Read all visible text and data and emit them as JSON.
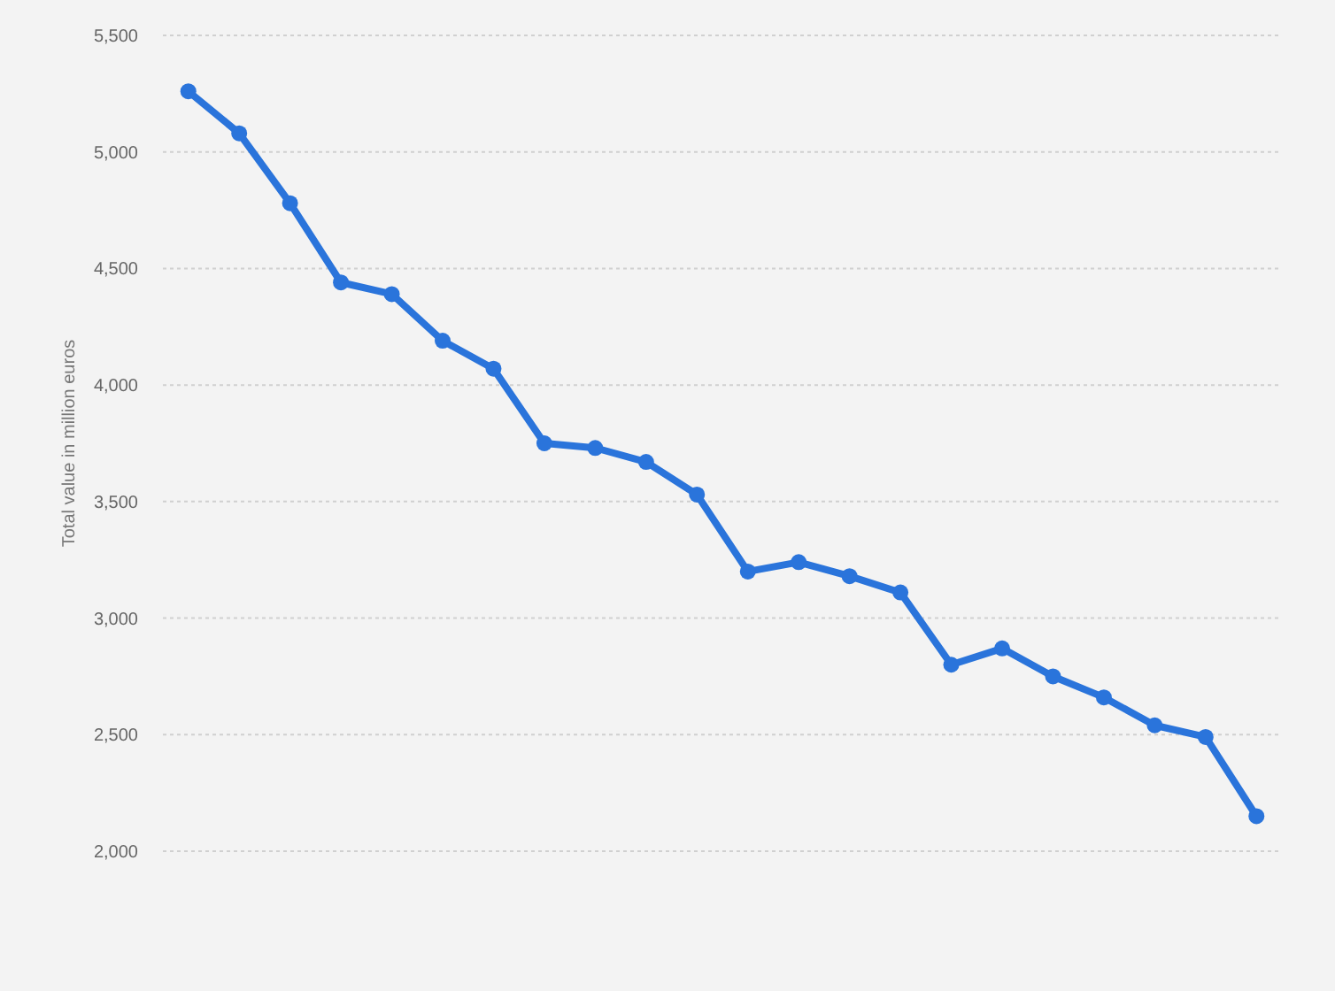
{
  "chart_data": {
    "type": "line",
    "ylabel": "Total value in million euros",
    "categories": [
      null,
      null,
      null,
      null,
      null,
      null,
      null,
      null,
      null,
      null,
      null,
      null,
      null,
      null,
      null,
      null,
      null,
      null,
      null,
      null,
      null,
      null
    ],
    "series": [
      {
        "color": "#2a74db",
        "values": [
          5260,
          5080,
          4780,
          4440,
          4390,
          4190,
          4070,
          3750,
          3730,
          3670,
          3530,
          3200,
          3240,
          3180,
          3110,
          2800,
          2870,
          2750,
          2660,
          2540,
          2490,
          2150
        ]
      }
    ],
    "ylim": [
      2000,
      5500
    ],
    "yticks": [
      {
        "value": 2000,
        "label": "2,000"
      },
      {
        "value": 2500,
        "label": "2,500"
      },
      {
        "value": 3000,
        "label": "3,000"
      },
      {
        "value": 3500,
        "label": "3,500"
      },
      {
        "value": 4000,
        "label": "4,000"
      },
      {
        "value": 4500,
        "label": "4,500"
      },
      {
        "value": 5000,
        "label": "5,000"
      },
      {
        "value": 5500,
        "label": "5,500"
      }
    ],
    "grid": "y",
    "marker": "circle",
    "line_style": "solid"
  }
}
